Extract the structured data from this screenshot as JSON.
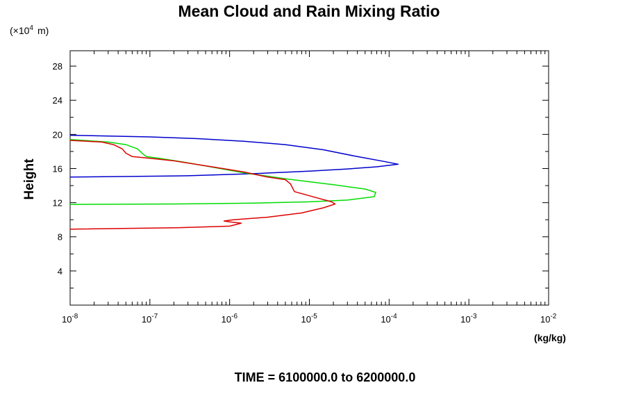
{
  "chart_data": {
    "type": "line",
    "title": "Mean Cloud and Rain Mixing Ratio",
    "ylabel": "Height",
    "y_scale_label": "(×10",
    "y_scale_exp": "4",
    "y_scale_unit": "m)",
    "xlabel": "(kg/kg)",
    "time_label": "TIME = 6100000.0 to 6200000.0",
    "x_scale": "log",
    "xlim": [
      1e-08,
      0.01
    ],
    "ylim": [
      0,
      29.8
    ],
    "grid": false,
    "x_ticks": [
      {
        "value": 1e-08,
        "base": "10",
        "exp": "-8"
      },
      {
        "value": 1e-07,
        "base": "10",
        "exp": "-7"
      },
      {
        "value": 1e-06,
        "base": "10",
        "exp": "-6"
      },
      {
        "value": 1e-05,
        "base": "10",
        "exp": "-5"
      },
      {
        "value": 0.0001,
        "base": "10",
        "exp": "-4"
      },
      {
        "value": 0.001,
        "base": "10",
        "exp": "-3"
      },
      {
        "value": 0.01,
        "base": "10",
        "exp": "-2"
      }
    ],
    "y_ticks": [
      {
        "value": 4,
        "label": "4"
      },
      {
        "value": 8,
        "label": "8"
      },
      {
        "value": 12,
        "label": "12"
      },
      {
        "value": 16,
        "label": "16"
      },
      {
        "value": 20,
        "label": "20"
      },
      {
        "value": 24,
        "label": "24"
      },
      {
        "value": 28,
        "label": "28"
      }
    ],
    "series": [
      {
        "color": "#0000cc",
        "points": [
          [
            1e-08,
            15.0
          ],
          [
            3e-07,
            15.15
          ],
          [
            2e-06,
            15.4
          ],
          [
            1e-05,
            15.7
          ],
          [
            3e-05,
            15.95
          ],
          [
            7e-05,
            16.2
          ],
          [
            0.00013,
            16.5
          ],
          [
            9e-05,
            16.8
          ],
          [
            4e-05,
            17.4
          ],
          [
            1.5e-05,
            18.2
          ],
          [
            5e-06,
            18.8
          ],
          [
            1.5e-06,
            19.2
          ],
          [
            4e-07,
            19.5
          ],
          [
            1e-07,
            19.7
          ],
          [
            1e-08,
            19.9
          ]
        ]
      },
      {
        "color": "#00dd00",
        "points": [
          [
            1e-08,
            11.8
          ],
          [
            2e-07,
            11.85
          ],
          [
            2e-06,
            11.95
          ],
          [
            1e-05,
            12.1
          ],
          [
            3e-05,
            12.3
          ],
          [
            6.5e-05,
            12.7
          ],
          [
            6.8e-05,
            13.2
          ],
          [
            5e-05,
            13.6
          ],
          [
            2e-05,
            14.1
          ],
          [
            5e-06,
            14.8
          ],
          [
            1.5e-06,
            15.5
          ],
          [
            5e-07,
            16.3
          ],
          [
            2.5e-07,
            16.8
          ],
          [
            1.3e-07,
            17.2
          ],
          [
            9e-08,
            17.4
          ],
          [
            8e-08,
            17.8
          ],
          [
            7e-08,
            18.3
          ],
          [
            5e-08,
            18.8
          ],
          [
            3e-08,
            19.1
          ],
          [
            1e-08,
            19.4
          ]
        ]
      },
      {
        "color": "#dd0000",
        "points": [
          [
            1e-08,
            8.9
          ],
          [
            2e-07,
            9.05
          ],
          [
            1e-06,
            9.25
          ],
          [
            1.4e-06,
            9.6
          ],
          [
            1e-06,
            9.75
          ],
          [
            8.5e-07,
            9.85
          ],
          [
            1.1e-06,
            10.0
          ],
          [
            3e-06,
            10.3
          ],
          [
            8e-06,
            10.8
          ],
          [
            1.5e-05,
            11.4
          ],
          [
            2.1e-05,
            11.85
          ],
          [
            1.9e-05,
            12.1
          ],
          [
            1.2e-05,
            12.6
          ],
          [
            6.5e-06,
            13.3
          ],
          [
            5.8e-06,
            14.2
          ],
          [
            5e-06,
            14.7
          ],
          [
            3e-06,
            15.0
          ],
          [
            1.5e-06,
            15.6
          ],
          [
            6e-07,
            16.2
          ],
          [
            2e-07,
            16.9
          ],
          [
            1e-07,
            17.2
          ],
          [
            6e-08,
            17.4
          ],
          [
            5e-08,
            17.8
          ],
          [
            4.5e-08,
            18.3
          ],
          [
            3.5e-08,
            18.8
          ],
          [
            2.5e-08,
            19.1
          ],
          [
            1e-08,
            19.3
          ]
        ]
      }
    ]
  }
}
